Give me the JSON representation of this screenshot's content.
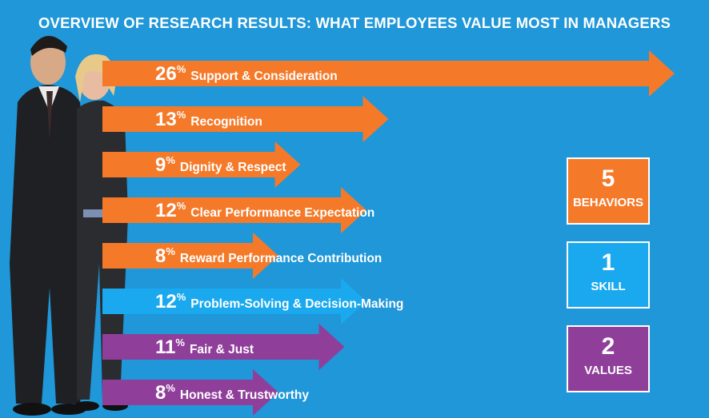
{
  "title": "OVERVIEW OF RESEARCH RESULTS: WHAT EMPLOYEES VALUE MOST IN MANAGERS",
  "colors": {
    "background": "#1f97d8",
    "orange": "#f47a2a",
    "blue": "#1aa9ee",
    "purple": "#8f3f9a"
  },
  "chart_data": {
    "type": "bar",
    "orientation": "horizontal",
    "title": "OVERVIEW OF RESEARCH RESULTS: WHAT EMPLOYEES VALUE MOST IN MANAGERS",
    "unit": "%",
    "categories": [
      "Support & Consideration",
      "Recognition",
      "Dignity & Respect",
      "Clear Performance Expectation",
      "Reward Performance Contribution",
      "Problem-Solving & Decision-Making",
      "Fair & Just",
      "Honest & Trustworthy"
    ],
    "values": [
      26,
      13,
      9,
      12,
      8,
      12,
      11,
      8
    ],
    "groups": [
      "behavior",
      "behavior",
      "behavior",
      "behavior",
      "behavior",
      "skill",
      "value",
      "value"
    ],
    "group_colors": {
      "behavior": "#f47a2a",
      "skill": "#1aa9ee",
      "value": "#8f3f9a"
    }
  },
  "summary": [
    {
      "number": "5",
      "label": "BEHAVIORS",
      "color": "#f47a2a"
    },
    {
      "number": "1",
      "label": "SKILL",
      "color": "#1aa9ee"
    },
    {
      "number": "2",
      "label": "VALUES",
      "color": "#8f3f9a"
    }
  ]
}
